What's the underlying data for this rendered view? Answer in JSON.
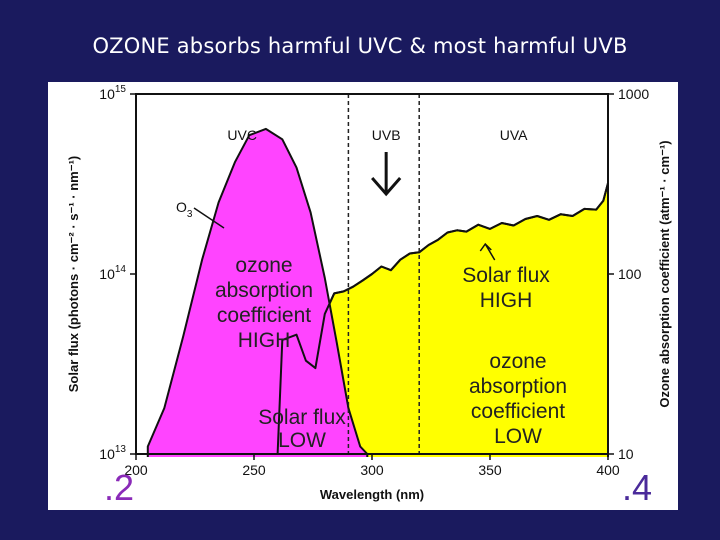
{
  "slide": {
    "title": "OZONE absorbs harmful UVC & most harmful UVB"
  },
  "colors": {
    "background": "#1a1a5e",
    "ozone_fill": "#ff44ff",
    "solar_fill": "#ffff00",
    "corner_left": "#8a2ab8",
    "corner_right": "#4a2a9a"
  },
  "chart_data": {
    "type": "area",
    "xlabel": "Wavelength (nm)",
    "ylabel_left": "Solar flux (photons · cm⁻² · s⁻¹ · nm⁻¹)",
    "ylabel_right": "Ozone absorption coefficient (atm⁻¹ · cm⁻¹)",
    "xlim": [
      200,
      400
    ],
    "ylim_left": [
      10000000000000.0,
      1000000000000000.0
    ],
    "ylim_right": [
      10,
      1000
    ],
    "y_scale": "log",
    "x_ticks": [
      "200",
      "250",
      "300",
      "350",
      "400"
    ],
    "y_left_ticks": [
      {
        "base": "10",
        "exp": "13",
        "value": 10000000000000.0
      },
      {
        "base": "10",
        "exp": "14",
        "value": 100000000000000.0
      },
      {
        "base": "10",
        "exp": "15",
        "value": 1000000000000000.0
      }
    ],
    "y_right_ticks": [
      {
        "label": "10",
        "value": 10
      },
      {
        "label": "100",
        "value": 100
      },
      {
        "label": "1000",
        "value": 1000
      }
    ],
    "band_boundaries_nm": [
      290,
      320
    ],
    "bands": [
      {
        "label": "UVC",
        "center_nm": 245
      },
      {
        "label": "UVB",
        "center_nm": 306
      },
      {
        "label": "UVA",
        "center_nm": 360
      }
    ],
    "series": [
      {
        "name": "O3",
        "axis": "right",
        "x": [
          205,
          212,
          220,
          228,
          235,
          242,
          248,
          255,
          262,
          268,
          274,
          280,
          285,
          290,
          295,
          298
        ],
        "values": [
          11,
          18,
          45,
          120,
          250,
          420,
          590,
          640,
          560,
          390,
          220,
          95,
          42,
          18,
          11,
          10
        ]
      },
      {
        "name": "Solar flux",
        "axis": "left",
        "x": [
          250,
          260,
          262,
          268,
          272,
          276,
          280,
          284,
          288,
          292,
          296,
          300,
          304,
          308,
          312,
          316,
          320,
          324,
          328,
          332,
          336,
          340,
          345,
          350,
          355,
          360,
          365,
          370,
          375,
          380,
          385,
          390,
          395,
          398,
          400
        ],
        "values": [
          10000000000000.0,
          10000000000000.0,
          43000000000000.0,
          46000000000000.0,
          33000000000000.0,
          30000000000000.0,
          60000000000000.0,
          78000000000000.0,
          80000000000000.0,
          85000000000000.0,
          92000000000000.0,
          100000000000000.0,
          110000000000000.0,
          105000000000000.0,
          120000000000000.0,
          130000000000000.0,
          132000000000000.0,
          145000000000000.0,
          155000000000000.0,
          170000000000000.0,
          175000000000000.0,
          172000000000000.0,
          188000000000000.0,
          178000000000000.0,
          192000000000000.0,
          186000000000000.0,
          202000000000000.0,
          210000000000000.0,
          200000000000000.0,
          215000000000000.0,
          210000000000000.0,
          230000000000000.0,
          228000000000000.0,
          255000000000000.0,
          320000000000000.0
        ]
      }
    ],
    "annotations": [
      {
        "name": "o3-label",
        "text": "O",
        "sub": "3"
      },
      {
        "name": "ozone-uvc",
        "lines": [
          "ozone",
          "absorption",
          "coefficient",
          "HIGH"
        ]
      },
      {
        "name": "solar-uvc",
        "lines": [
          "Solar flux",
          "LOW"
        ]
      },
      {
        "name": "solar-uva",
        "lines": [
          "Solar flux",
          "HIGH"
        ]
      },
      {
        "name": "ozone-uva",
        "lines": [
          "ozone",
          "absorption",
          "coefficient",
          "LOW"
        ]
      }
    ],
    "corner_labels": {
      "left": ".2",
      "right": ".4"
    }
  }
}
